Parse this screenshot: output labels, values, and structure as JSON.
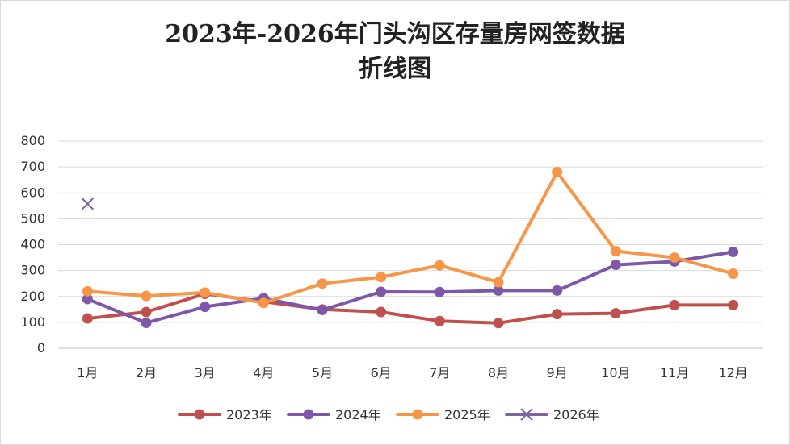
{
  "chart_data": {
    "type": "line",
    "title": "2023年-2026年门头沟区存量房网签数据",
    "subtitle": "折线图",
    "categories": [
      "1月",
      "2月",
      "3月",
      "4月",
      "5月",
      "6月",
      "7月",
      "8月",
      "9月",
      "10月",
      "11月",
      "12月"
    ],
    "ylim": [
      0,
      800
    ],
    "yticks": [
      0,
      100,
      200,
      300,
      400,
      500,
      600,
      700,
      800
    ],
    "grid": true,
    "legend_position": "bottom",
    "series": [
      {
        "name": "2023年",
        "color": "#c0504d",
        "marker": "circle",
        "values": [
          115,
          140,
          210,
          180,
          150,
          140,
          105,
          97,
          132,
          135,
          167,
          167
        ]
      },
      {
        "name": "2024年",
        "color": "#7e57a8",
        "marker": "circle",
        "values": [
          190,
          98,
          160,
          193,
          148,
          218,
          217,
          223,
          223,
          322,
          335,
          372
        ]
      },
      {
        "name": "2025年",
        "color": "#f79646",
        "marker": "circle",
        "values": [
          220,
          202,
          215,
          175,
          250,
          275,
          320,
          255,
          680,
          375,
          350,
          288
        ]
      },
      {
        "name": "2026年",
        "color": "#8064a2",
        "marker": "x",
        "values": [
          558,
          null,
          null,
          null,
          null,
          null,
          null,
          null,
          null,
          null,
          null,
          null
        ]
      }
    ]
  }
}
